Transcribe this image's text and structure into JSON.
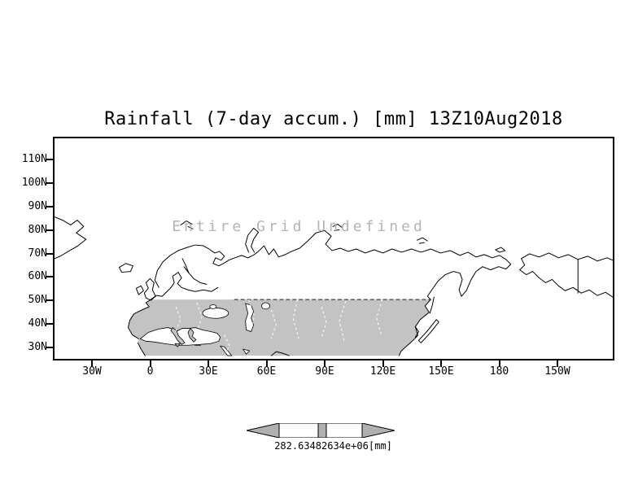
{
  "title": "Rainfall (7-day accum.) [mm] 13Z10Aug2018",
  "annotation": "Entire Grid Undefined",
  "axes": {
    "y_ticks": [
      "110N",
      "100N",
      "90N",
      "80N",
      "70N",
      "60N",
      "50N",
      "40N",
      "30N"
    ],
    "x_ticks": [
      "30W",
      "0",
      "30E",
      "60E",
      "90E",
      "120E",
      "150E",
      "180",
      "150W"
    ]
  },
  "colorbar": {
    "label": "282.63482634e+06",
    "unit": "[mm]"
  },
  "colors": {
    "shading_gray": "#c3c3c3",
    "coastline": "#000000",
    "annotation_gray": "#b4b4b4",
    "colorbar_gray": "#b0b0b0",
    "background": "#ffffff"
  },
  "chart_data": {
    "type": "heatmap",
    "title": "Rainfall (7-day accum.) [mm] 13Z10Aug2018",
    "variable": "Rainfall (7-day accum.)",
    "units": "mm",
    "valid_time": "13Z10Aug2018",
    "status": "Entire Grid Undefined",
    "values": [],
    "x_axis": "longitude",
    "y_axis": "latitude",
    "x_tick_labels": [
      "30W",
      "0",
      "30E",
      "60E",
      "90E",
      "120E",
      "150E",
      "180",
      "150W"
    ],
    "y_tick_labels": [
      "110N",
      "100N",
      "90N",
      "80N",
      "70N",
      "60N",
      "50N",
      "40N",
      "30N"
    ],
    "grid": false,
    "legend_position": "bottom",
    "colorbar": {
      "display_text": "282.63482634e+06",
      "unit": "[mm]",
      "shape": "double-arrow"
    },
    "shaded_region_note": "land areas south of ~50N shaded gray (undefined data region)"
  }
}
